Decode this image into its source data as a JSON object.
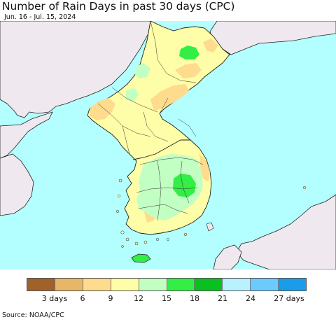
{
  "title": "Number of Rain Days in past 30 days (CPC)",
  "subtitle": "Jun. 16 - Jul. 15, 2024",
  "source": "Source: NOAA/CPC",
  "colors": {
    "ocean": "#b3ffff",
    "land_outside": "#efe9ef",
    "border": "#222222"
  },
  "legend": {
    "colors": [
      "#a0622a",
      "#e7b666",
      "#fedb8d",
      "#fffea8",
      "#c2ffc3",
      "#33ee44",
      "#08c020",
      "#b8f2ff",
      "#6ccaff",
      "#1a9ce8"
    ],
    "labels": [
      "3 days",
      "6",
      "9",
      "12",
      "15",
      "18",
      "21",
      "24",
      "27 days"
    ]
  }
}
